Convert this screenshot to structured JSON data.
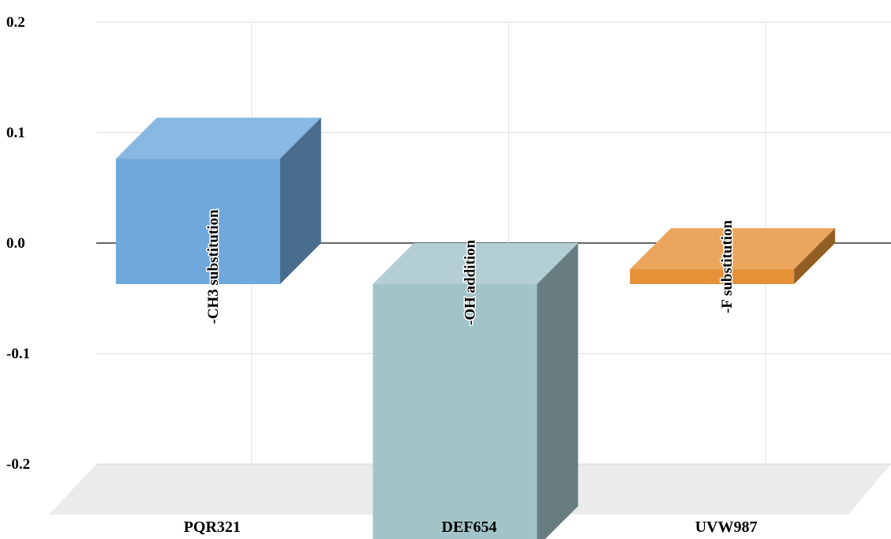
{
  "chart_data": {
    "type": "bar",
    "style": "3d-column",
    "categories": [
      "PQR321",
      "DEF654",
      "UVW987"
    ],
    "values": [
      0.1135,
      -0.2381,
      0.0135
    ],
    "data_labels": [
      "-CH3 substitution",
      "-OH addition",
      "-F substitution"
    ],
    "colors": [
      "#6fa8dc",
      "#a2c4c9",
      "#e69138"
    ],
    "ylim": [
      -0.2,
      0.2
    ],
    "yticks": [
      "0.2",
      "0.1",
      "0.0",
      "-0.1",
      "-0.2"
    ],
    "ytick_values": [
      0.2,
      0.1,
      0.0,
      -0.1,
      -0.2
    ],
    "grid": true,
    "legend": "none",
    "title": "",
    "xlabel": "",
    "ylabel": ""
  }
}
